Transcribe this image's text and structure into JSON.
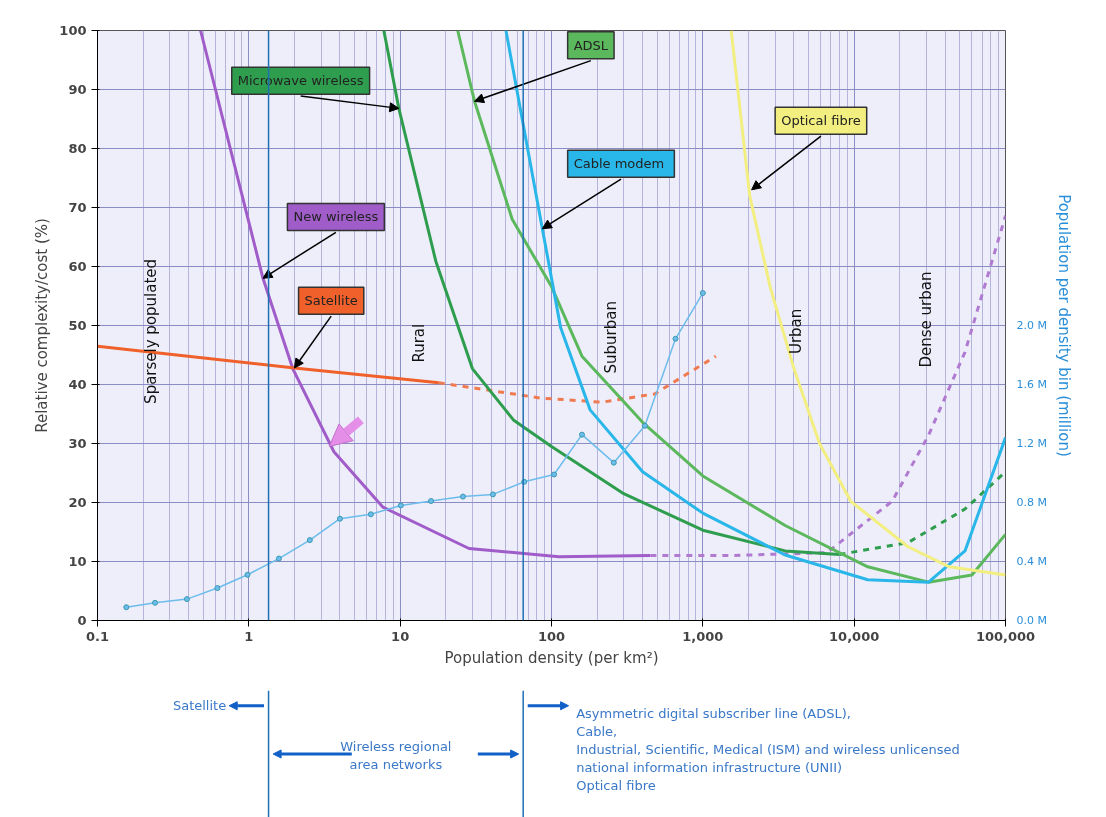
{
  "chart_data": {
    "type": "line",
    "xlabel": "Population density (per km²)",
    "ylabel": "Relative complexity/cost (%)",
    "y2label": "Population per density bin (million)",
    "log": "x",
    "grid": true,
    "xlim": [
      0.1,
      100000
    ],
    "xticks": [
      0.1,
      1,
      10,
      100,
      {
        "value": 1000,
        "label": "1,000"
      },
      {
        "value": 10000,
        "label": "10,000"
      },
      {
        "value": 100000,
        "label": "100,000"
      }
    ],
    "ylim": [
      0,
      100
    ],
    "yticks": [
      0,
      10,
      20,
      30,
      40,
      50,
      60,
      70,
      80,
      90,
      100
    ],
    "y2lim": [
      0,
      4
    ],
    "y2ticks": [
      {
        "value": 0,
        "label": "0.0 M"
      },
      {
        "value": 0.4,
        "label": "0.4 M"
      },
      {
        "value": 0.8,
        "label": "0.8 M"
      },
      {
        "value": 1.2,
        "label": "1.2 M"
      },
      {
        "value": 1.6,
        "label": "1.6 M"
      },
      {
        "value": 2.0,
        "label": "2.0 M"
      }
    ],
    "series": [
      {
        "name": "New wireless",
        "color": "#a05cc8",
        "line_style": "solid",
        "x": [
          0.48,
          1.24,
          1.95,
          3.65,
          7.7,
          28.5,
          112,
          450
        ],
        "values": [
          100,
          58,
          42.7,
          28.6,
          19.2,
          12.2,
          10.8,
          11
        ]
      },
      {
        "color": "#b07ad0",
        "line_style": "dashed",
        "x": [
          450,
          1500,
          6600,
          17800,
          31000,
          54000,
          100000
        ],
        "values": [
          11,
          11,
          11.5,
          20.2,
          31.4,
          45.5,
          68.6
        ]
      },
      {
        "name": "Satellite",
        "color": "#f0602a",
        "line_style": "solid",
        "x": [
          0.1,
          2,
          18
        ],
        "values": [
          46.5,
          42.8,
          40.3
        ]
      },
      {
        "color": "#f07a50",
        "line_style": "dashed",
        "x": [
          18,
          85,
          215,
          480,
          1220
        ],
        "values": [
          40.3,
          37.7,
          37,
          38.4,
          44.8
        ]
      },
      {
        "name": "Microwave wireless",
        "color": "#2e9e4e",
        "line_style": "solid",
        "x": [
          7.8,
          9.8,
          17.2,
          30,
          56,
          100,
          295,
          1000,
          3500,
          8000
        ],
        "values": [
          100,
          86.8,
          60.9,
          42.7,
          34,
          29.5,
          21.6,
          15.3,
          11.8,
          11.2
        ]
      },
      {
        "color": "#2e9e4e",
        "line_style": "dashed",
        "x": [
          8000,
          22700,
          54000,
          100000
        ],
        "values": [
          11.2,
          13.2,
          18.9,
          25.2
        ]
      },
      {
        "name": "ADSL",
        "color": "#5cb85c",
        "line_style": "solid",
        "x": [
          24,
          31,
          55,
          100,
          159,
          400,
          1000,
          3500,
          12300,
          31000,
          60000,
          100000
        ],
        "values": [
          100,
          88,
          68,
          56.6,
          44.8,
          33.6,
          24.5,
          16.1,
          9.1,
          6.5,
          7.7,
          14.6
        ]
      },
      {
        "name": "Cable  modem",
        "color": "#29b6e8",
        "line_style": "solid",
        "x": [
          50,
          87,
          115,
          180,
          400,
          1000,
          3500,
          12300,
          31000,
          54000,
          100000
        ],
        "values": [
          100,
          66.4,
          49.6,
          35.7,
          25.2,
          18.2,
          11.1,
          6.9,
          6.5,
          11.8,
          31
        ]
      },
      {
        "name": "Optical fibre",
        "color": "#f2ee80",
        "line_style": "solid",
        "x": [
          1540,
          2040,
          2780,
          4000,
          5900,
          9500,
          22700,
          42500,
          100000
        ],
        "values": [
          100,
          72,
          56.6,
          42.7,
          30,
          20.2,
          12.5,
          9.1,
          7.7
        ]
      },
      {
        "color": "#6cbcec",
        "line_style": "solid",
        "marker": "circle",
        "axis": "y2",
        "x": [
          0.155,
          0.24,
          0.39,
          0.62,
          0.98,
          1.58,
          2.53,
          4.0,
          6.4,
          10.1,
          16,
          26,
          41,
          66,
          104,
          159,
          258,
          414,
          660,
          1000
        ],
        "values": [
          0.09,
          0.12,
          0.145,
          0.22,
          0.31,
          0.42,
          0.545,
          0.69,
          0.72,
          0.78,
          0.81,
          0.84,
          0.855,
          0.94,
          0.99,
          1.26,
          1.07,
          1.32,
          1.91,
          2.22
        ]
      }
    ],
    "ref_lines": [
      {
        "axis": "x",
        "value": 1.35,
        "color": "#1f6fb5"
      },
      {
        "axis": "x",
        "value": 65,
        "color": "#1f6fb5"
      }
    ],
    "annotations": [
      "Sparsely populated",
      "Rural",
      "Suburban",
      "Urban",
      "Dense urban",
      "Satellite",
      "Wireless regional\narea networks",
      "Asymmetric digital subscriber line (ADSL),\nCable,\nIndustrial, Scientific, Medical (ISM) and wireless unlicensed\nnational information infrastructure (UNII)\nOptical fibre"
    ]
  }
}
